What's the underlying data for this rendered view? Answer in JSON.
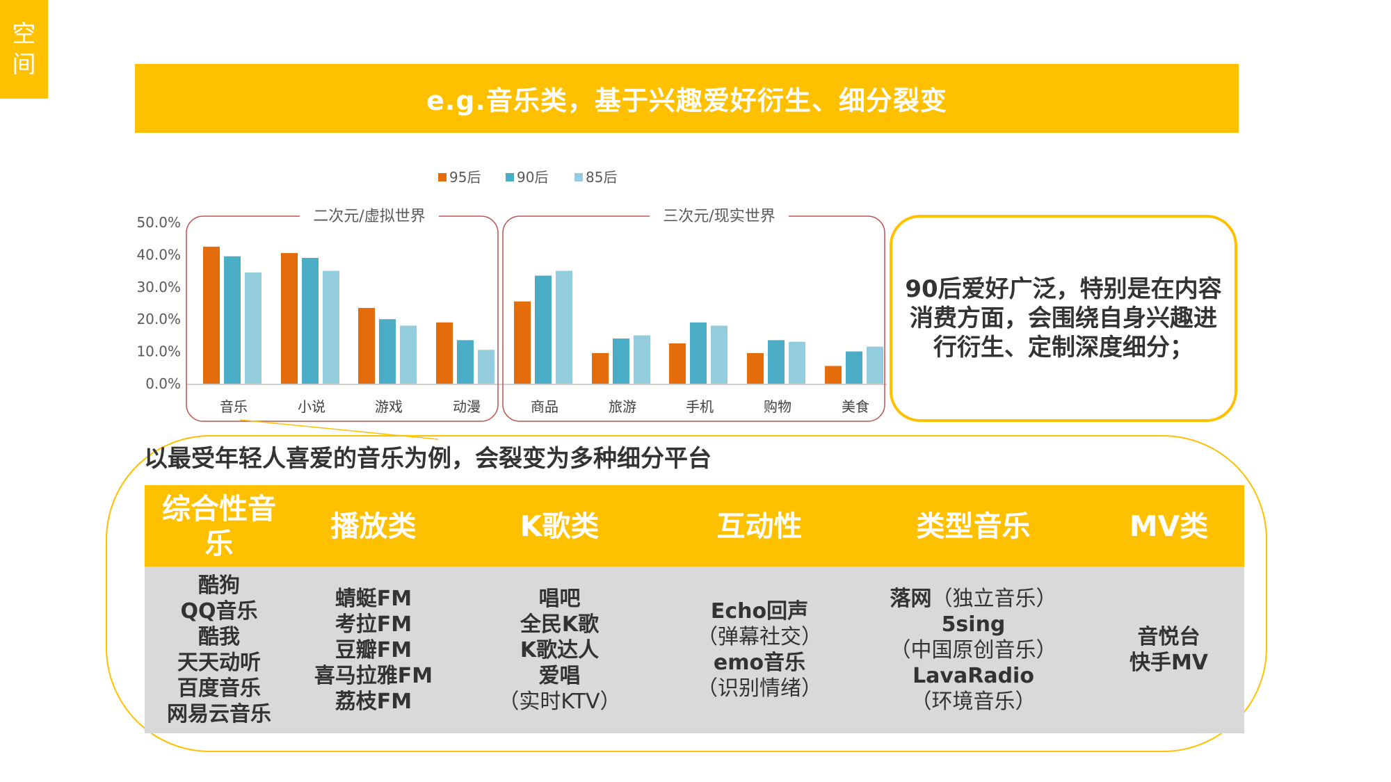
{
  "side_tab": [
    "空",
    "间"
  ],
  "banner": {
    "title": "e.g.音乐类，基于兴趣爱好衍生、细分裂变"
  },
  "chart_data": {
    "type": "bar",
    "series": [
      {
        "name": "95后",
        "color": "#E46C0A",
        "values": [
          42.5,
          40.5,
          23.5,
          19.0,
          25.5,
          9.5,
          12.5,
          9.5,
          5.5
        ]
      },
      {
        "name": "90后",
        "color": "#4BACC6",
        "values": [
          39.5,
          39.0,
          20.0,
          13.5,
          33.5,
          14.0,
          19.0,
          13.5,
          10.0
        ]
      },
      {
        "name": "85后",
        "color": "#93CDDD",
        "values": [
          34.5,
          35.0,
          18.0,
          10.5,
          35.0,
          15.0,
          18.0,
          13.0,
          11.5
        ]
      }
    ],
    "categories": [
      "音乐",
      "小说",
      "游戏",
      "动漫",
      "商品",
      "旅游",
      "手机",
      "购物",
      "美食"
    ],
    "groups": [
      {
        "label": "二次元/虚拟世界",
        "categories": [
          "音乐",
          "小说",
          "游戏",
          "动漫"
        ]
      },
      {
        "label": "三次元/现实世界",
        "categories": [
          "商品",
          "旅游",
          "手机",
          "购物",
          "美食"
        ]
      }
    ],
    "yticks": [
      "0.0%",
      "10.0%",
      "20.0%",
      "30.0%",
      "40.0%",
      "50.0%"
    ],
    "ylim": [
      0,
      50
    ],
    "legend_position": "top"
  },
  "callout": {
    "text": "90后爱好广泛，特别是在内容消费方面，会围绕自身兴趣进行衍生、定制深度细分；"
  },
  "example": {
    "title": "以最受年轻人喜爱的音乐为例，会裂变为多种细分平台",
    "columns": [
      {
        "header": "综合性音乐",
        "items": [
          {
            "t": "酷狗"
          },
          {
            "t": "QQ音乐"
          },
          {
            "t": "酷我"
          },
          {
            "t": "天天动听"
          },
          {
            "t": "百度音乐"
          },
          {
            "t": "网易云音乐"
          }
        ]
      },
      {
        "header": "播放类",
        "items": [
          {
            "t": "蜻蜓FM"
          },
          {
            "t": "考拉FM"
          },
          {
            "t": "豆瓣FM"
          },
          {
            "t": "喜马拉雅FM"
          },
          {
            "t": "荔枝FM"
          }
        ]
      },
      {
        "header": "K歌类",
        "items": [
          {
            "t": "唱吧"
          },
          {
            "t": "全民K歌"
          },
          {
            "t": "K歌达人"
          },
          {
            "t": "爱唱"
          },
          {
            "t": "（实时KTV）",
            "plain": true
          }
        ]
      },
      {
        "header": "互动性",
        "items": [
          {
            "t": "Echo回声"
          },
          {
            "t": "（弹幕社交）",
            "plain": true
          },
          {
            "t": "emo音乐"
          },
          {
            "t": "（识别情绪）",
            "plain": true
          }
        ]
      },
      {
        "header": "类型音乐",
        "items": [
          {
            "t": "落网",
            "suffix": "（独立音乐）"
          },
          {
            "t": "5sing"
          },
          {
            "t": "（中国原创音乐）",
            "plain": true
          },
          {
            "t": "LavaRadio"
          },
          {
            "t": "（环境音乐）",
            "plain": true
          }
        ]
      },
      {
        "header": "MV类",
        "items": [
          {
            "t": "音悦台"
          },
          {
            "t": "快手MV"
          }
        ]
      }
    ]
  }
}
